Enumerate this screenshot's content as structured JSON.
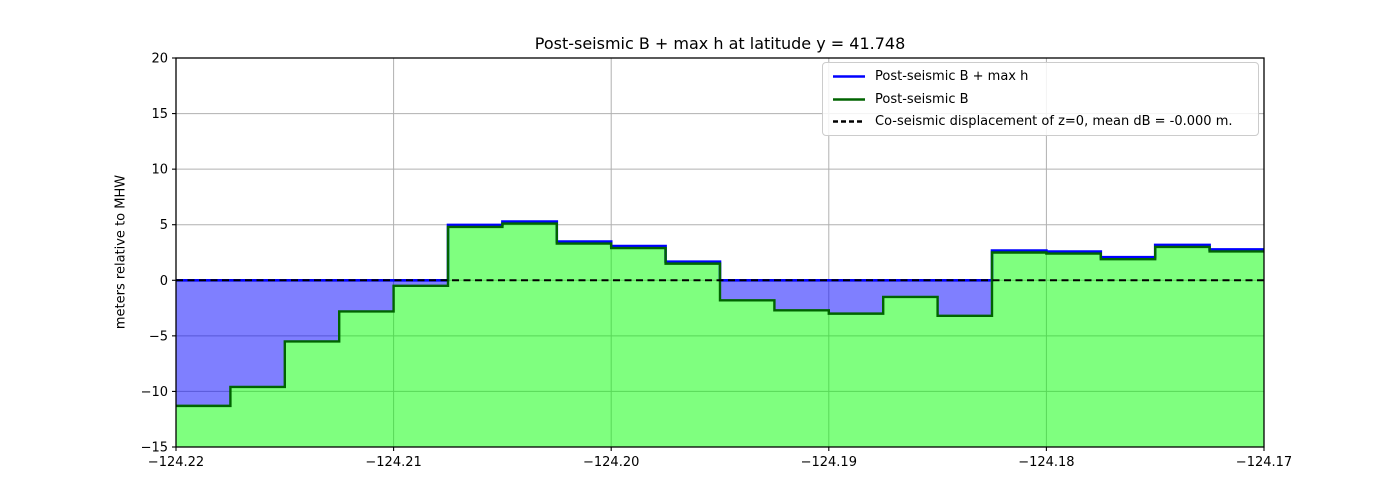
{
  "chart_data": {
    "type": "area",
    "title": "Post-seismic B + max h at latitude y = 41.748",
    "xlabel": "",
    "ylabel": "meters relative to MHW",
    "xlim": [
      -124.22,
      -124.17
    ],
    "ylim": [
      -15,
      20
    ],
    "grid": true,
    "legend_position": "upper right",
    "colors": {
      "grid": "#b0b0b0",
      "axes": "#000000",
      "background": "#ffffff",
      "water_fill": "#0000ff",
      "land_fill": "#00ff00",
      "fill_alpha": 0.5
    },
    "xticks": {
      "values": [
        -124.22,
        -124.21,
        -124.2,
        -124.19,
        -124.18,
        -124.17
      ],
      "labels": [
        "−124.22",
        "−124.21",
        "−124.20",
        "−124.19",
        "−124.18",
        "−124.17"
      ]
    },
    "yticks": {
      "values": [
        -15,
        -10,
        -5,
        0,
        5,
        10,
        15,
        20
      ],
      "labels": [
        "−15",
        "−10",
        "−5",
        "0",
        "5",
        "10",
        "15",
        "20"
      ]
    },
    "x_edges": [
      -124.22,
      -124.2175,
      -124.215,
      -124.2125,
      -124.21,
      -124.2075,
      -124.205,
      -124.2025,
      -124.2,
      -124.1975,
      -124.195,
      -124.1925,
      -124.19,
      -124.1875,
      -124.185,
      -124.1825,
      -124.18,
      -124.1775,
      -124.175,
      -124.1725,
      -124.17
    ],
    "series": [
      {
        "name": "Post-seismic B + max h",
        "color": "#0000ff",
        "style": "solid",
        "values": [
          0,
          0,
          0,
          0,
          0,
          4.8,
          5.1,
          3.3,
          2.9,
          1.5,
          0,
          0,
          0,
          0,
          0,
          2.5,
          2.4,
          1.9,
          3.0,
          2.6
        ]
      },
      {
        "name": "Post-seismic B",
        "color": "#006400",
        "style": "solid",
        "values": [
          -11.3,
          -9.6,
          -5.5,
          -2.8,
          -0.5,
          4.8,
          5.1,
          3.3,
          2.9,
          1.5,
          -1.8,
          -2.7,
          -3.0,
          -1.5,
          -3.2,
          2.5,
          2.4,
          1.9,
          3.0,
          2.6
        ]
      },
      {
        "name": "Co-seismic displacement of z=0, mean dB = -0.000 m.",
        "color": "#000000",
        "style": "dashed",
        "y": 0
      }
    ]
  }
}
